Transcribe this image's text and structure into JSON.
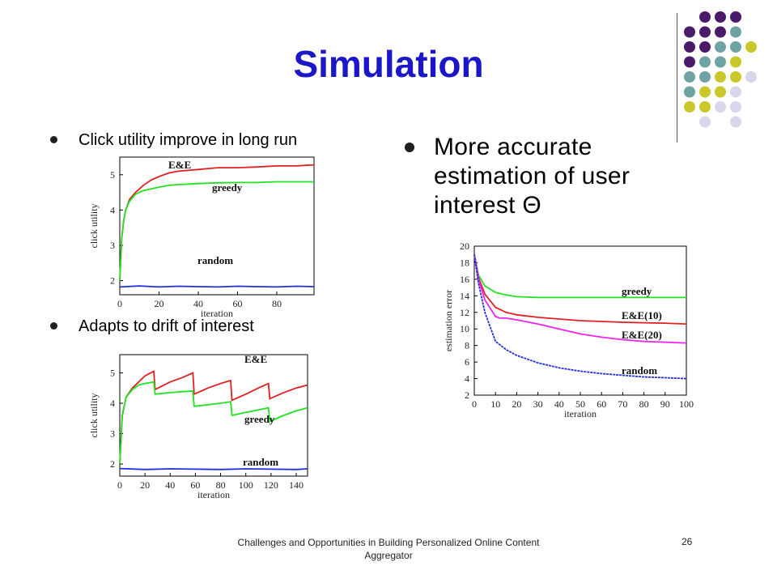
{
  "slide": {
    "title": "Simulation",
    "bullets": {
      "b1": "Click utility improve in long run",
      "b2": "Adapts to drift of interest",
      "b3": "More accurate estimation of user interest Θ"
    },
    "footer": "Challenges and Opportunities in Building Personalized Online Content Aggregator",
    "page_number": "26",
    "dot_colors": {
      "purple": "#4a1a6b",
      "teal": "#6fa3a3",
      "olive": "#c9c72a",
      "lavender": "#d8d6ea"
    }
  },
  "chart_data": [
    {
      "type": "line",
      "xlabel": "iteration",
      "ylabel": "click utility",
      "xticks": [
        "0",
        "20",
        "40",
        "60",
        "80"
      ],
      "yticks": [
        "2",
        "3",
        "4",
        "5"
      ],
      "xlim": [
        0,
        99
      ],
      "ylim": [
        1.6,
        5.5
      ],
      "series": [
        {
          "name": "E&E",
          "color": "#e02020",
          "x": [
            0,
            1,
            2,
            3,
            5,
            8,
            12,
            16,
            20,
            25,
            30,
            40,
            50,
            60,
            70,
            80,
            90,
            99
          ],
          "y": [
            2.0,
            3.2,
            3.7,
            4.0,
            4.3,
            4.5,
            4.7,
            4.85,
            4.95,
            5.05,
            5.1,
            5.15,
            5.2,
            5.2,
            5.22,
            5.25,
            5.25,
            5.28
          ]
        },
        {
          "name": "greedy",
          "color": "#22e022",
          "x": [
            0,
            1,
            2,
            3,
            5,
            8,
            12,
            16,
            20,
            25,
            30,
            40,
            50,
            60,
            70,
            80,
            90,
            99
          ],
          "y": [
            2.0,
            3.2,
            3.7,
            4.0,
            4.25,
            4.45,
            4.55,
            4.6,
            4.65,
            4.7,
            4.72,
            4.75,
            4.77,
            4.78,
            4.78,
            4.8,
            4.8,
            4.8
          ]
        },
        {
          "name": "random",
          "color": "#2030e0",
          "x": [
            0,
            10,
            20,
            30,
            40,
            50,
            60,
            70,
            80,
            90,
            99
          ],
          "y": [
            1.82,
            1.85,
            1.82,
            1.84,
            1.83,
            1.82,
            1.84,
            1.83,
            1.82,
            1.84,
            1.83
          ]
        }
      ]
    },
    {
      "type": "line",
      "xlabel": "iteration",
      "ylabel": "click utility",
      "xticks": [
        "0",
        "20",
        "40",
        "60",
        "80",
        "100",
        "120",
        "140"
      ],
      "yticks": [
        "2",
        "3",
        "4",
        "5"
      ],
      "xlim": [
        0,
        149
      ],
      "ylim": [
        1.6,
        5.6
      ],
      "series": [
        {
          "name": "E&E",
          "color": "#e02020",
          "x": [
            0,
            2,
            5,
            10,
            15,
            20,
            27,
            28,
            40,
            50,
            58,
            59,
            70,
            80,
            88,
            89,
            100,
            110,
            118,
            119,
            130,
            140,
            149
          ],
          "y": [
            2.0,
            3.6,
            4.2,
            4.5,
            4.7,
            4.9,
            5.05,
            4.45,
            4.7,
            4.85,
            5.0,
            4.3,
            4.5,
            4.65,
            4.75,
            4.1,
            4.3,
            4.5,
            4.65,
            4.15,
            4.35,
            4.5,
            4.6
          ]
        },
        {
          "name": "greedy",
          "color": "#22e022",
          "x": [
            0,
            2,
            5,
            10,
            15,
            20,
            27,
            28,
            40,
            50,
            58,
            59,
            70,
            80,
            88,
            89,
            100,
            110,
            118,
            119,
            130,
            140,
            149
          ],
          "y": [
            2.0,
            3.6,
            4.2,
            4.45,
            4.6,
            4.65,
            4.7,
            4.3,
            4.35,
            4.38,
            4.4,
            3.9,
            3.95,
            4.0,
            4.05,
            3.6,
            3.7,
            3.78,
            3.85,
            3.4,
            3.6,
            3.75,
            3.85
          ]
        },
        {
          "name": "random",
          "color": "#2030e0",
          "x": [
            0,
            20,
            40,
            60,
            80,
            100,
            120,
            140,
            149
          ],
          "y": [
            1.85,
            1.82,
            1.84,
            1.83,
            1.82,
            1.84,
            1.83,
            1.82,
            1.84
          ]
        }
      ]
    },
    {
      "type": "line",
      "xlabel": "iteration",
      "ylabel": "estimation error",
      "xticks": [
        "0",
        "10",
        "20",
        "30",
        "40",
        "50",
        "60",
        "70",
        "80",
        "90",
        "100"
      ],
      "yticks": [
        "2",
        "4",
        "6",
        "8",
        "10",
        "12",
        "14",
        "16",
        "18",
        "20"
      ],
      "xlim": [
        0,
        100
      ],
      "ylim": [
        2,
        20
      ],
      "series": [
        {
          "name": "greedy",
          "color": "#22e022",
          "x": [
            0,
            2,
            5,
            10,
            15,
            20,
            30,
            40,
            50,
            60,
            70,
            80,
            90,
            100
          ],
          "y": [
            19,
            16.5,
            15.2,
            14.4,
            14.1,
            13.9,
            13.8,
            13.8,
            13.8,
            13.8,
            13.8,
            13.8,
            13.8,
            13.8
          ]
        },
        {
          "name": "E&E(10)",
          "color": "#e02020",
          "x": [
            0,
            2,
            5,
            10,
            15,
            20,
            30,
            40,
            50,
            60,
            70,
            80,
            90,
            100
          ],
          "y": [
            19,
            16.2,
            14.2,
            12.6,
            12.0,
            11.7,
            11.4,
            11.2,
            11.0,
            10.9,
            10.8,
            10.75,
            10.7,
            10.6
          ]
        },
        {
          "name": "E&E(20)",
          "color": "#ee22ee",
          "x": [
            0,
            2,
            5,
            10,
            12,
            15,
            20,
            30,
            40,
            50,
            60,
            70,
            80,
            90,
            100
          ],
          "y": [
            19,
            16.0,
            13.5,
            11.5,
            11.3,
            11.3,
            11.1,
            10.6,
            10.0,
            9.4,
            9.0,
            8.7,
            8.5,
            8.4,
            8.3
          ]
        },
        {
          "name": "random",
          "color": "#2030e0",
          "x": [
            0,
            2,
            5,
            10,
            15,
            20,
            30,
            40,
            50,
            60,
            70,
            80,
            90,
            100
          ],
          "y": [
            19,
            15.5,
            12.0,
            8.5,
            7.5,
            6.8,
            5.9,
            5.3,
            4.9,
            4.6,
            4.4,
            4.2,
            4.1,
            4.0
          ]
        }
      ]
    }
  ]
}
